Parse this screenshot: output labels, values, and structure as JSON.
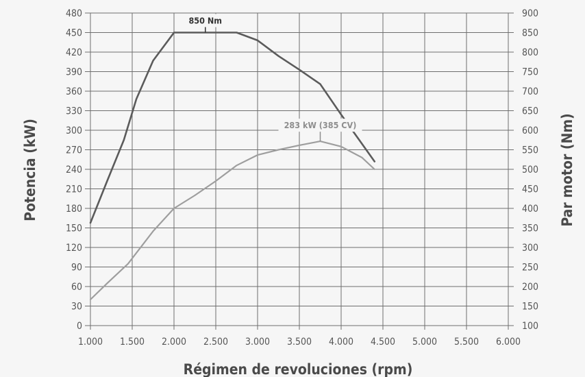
{
  "chart_data": {
    "type": "line",
    "xlabel": "Régimen de revoluciones (rpm)",
    "ylabel_left": "Potencia (kW)",
    "ylabel_right": "Par motor (Nm)",
    "xlim": [
      1000,
      6000
    ],
    "ylim_left": [
      0,
      480
    ],
    "ylim_right": [
      100,
      900
    ],
    "x_ticks": [
      "1.000",
      "1.500",
      "2.000",
      "2.500",
      "3.000",
      "3.500",
      "4.000",
      "4.500",
      "5.000",
      "5.500",
      "6.000"
    ],
    "y_ticks_left": [
      "0",
      "30",
      "60",
      "90",
      "120",
      "150",
      "180",
      "210",
      "240",
      "270",
      "300",
      "330",
      "360",
      "390",
      "420",
      "450",
      "480"
    ],
    "y_ticks_right": [
      "100",
      "150",
      "200",
      "250",
      "300",
      "350",
      "400",
      "450",
      "500",
      "550",
      "600",
      "650",
      "700",
      "750",
      "800",
      "850",
      "900"
    ],
    "grid": true,
    "series": [
      {
        "name": "",
        "axis": "right",
        "color": "#5b5b5b",
        "x": [
          1000,
          1200,
          1400,
          1550,
          1750,
          2000,
          2250,
          2500,
          2750,
          3000,
          3250,
          3500,
          3750,
          4000,
          4200,
          4400
        ],
        "y": [
          363,
          470,
          575,
          680,
          778,
          850,
          850,
          850,
          850,
          830,
          790,
          755,
          718,
          640,
          580,
          520
        ]
      },
      {
        "name": "",
        "axis": "left",
        "color": "#9e9e9e",
        "x": [
          1000,
          1200,
          1450,
          1750,
          2000,
          2250,
          2500,
          2750,
          3000,
          3250,
          3500,
          3750,
          4000,
          4250,
          4400
        ],
        "y": [
          40,
          65,
          95,
          145,
          180,
          200,
          222,
          246,
          262,
          270,
          277,
          283,
          275,
          258,
          240
        ]
      }
    ],
    "annotations": [
      {
        "text": "850 Nm",
        "series": 0,
        "x": 2375,
        "y": 850,
        "color": "#333333"
      },
      {
        "text": "283 kW (385 CV)",
        "series": 1,
        "x": 3750,
        "y": 283,
        "color": "#8e8e8e"
      }
    ]
  }
}
